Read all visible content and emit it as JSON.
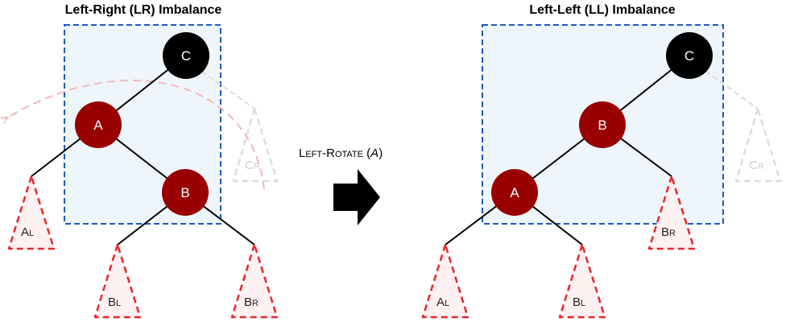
{
  "left_panel": {
    "title": "Left-Right (LR) Imbalance",
    "nodes": {
      "c": "C",
      "a": "A",
      "b": "B"
    },
    "subtrees": {
      "al": {
        "main": "A",
        "sub": "L"
      },
      "bl": {
        "main": "B",
        "sub": "L"
      },
      "br": {
        "main": "B",
        "sub": "R"
      },
      "cr": {
        "main": "C",
        "sub": "R"
      }
    }
  },
  "operation": {
    "prefix": "L",
    "prefix_rest": "EFT",
    "sep": "-R",
    "word_rest": "OTATE",
    "open_paren": " (",
    "arg": "A",
    "close_paren": ")"
  },
  "right_panel": {
    "title": "Left-Left (LL) Imbalance",
    "nodes": {
      "c": "C",
      "b": "B",
      "a": "A"
    },
    "subtrees": {
      "al": {
        "main": "A",
        "sub": "L"
      },
      "bl": {
        "main": "B",
        "sub": "L"
      },
      "br": {
        "main": "B",
        "sub": "R"
      },
      "cr": {
        "main": "C",
        "sub": "R"
      }
    }
  },
  "colors": {
    "red_node": "#990000",
    "black_node": "#000000",
    "box_fill": "#eef6fb",
    "box_stroke": "#1f57c7",
    "subtree_red": "#e8262c",
    "subtree_fill": "#fdf1f1",
    "subtree_gray": "#d9d9d9",
    "arrow_pink": "#f2b9b9"
  }
}
